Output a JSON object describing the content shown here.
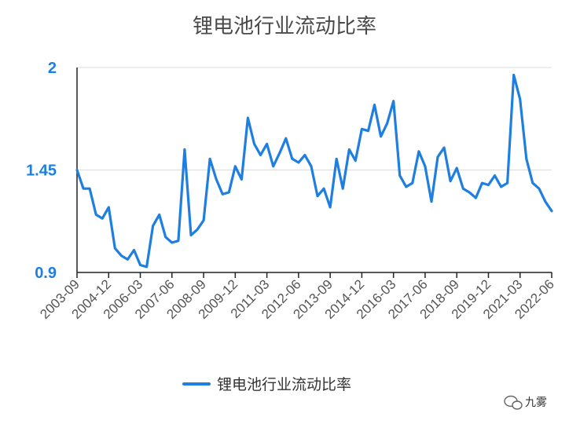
{
  "chart_data": {
    "type": "line",
    "title": "锂电池行业流动比率",
    "xlabel": "",
    "ylabel": "",
    "ylim": [
      0.9,
      2
    ],
    "yticks": [
      "0.9",
      "1.45",
      "2"
    ],
    "xticks": [
      "2003-09",
      "2004-12",
      "2006-03",
      "2007-06",
      "2008-09",
      "2009-12",
      "2011-03",
      "2012-06",
      "2013-09",
      "2014-12",
      "2016-03",
      "2017-06",
      "2018-09",
      "2019-12",
      "2021-03",
      "2022-06"
    ],
    "grid": true,
    "legend": "bottom",
    "series": [
      {
        "name": "锂电池行业流动比率",
        "color": "#1f7fe0",
        "values": [
          1.45,
          1.35,
          1.35,
          1.21,
          1.19,
          1.25,
          1.03,
          0.99,
          0.97,
          1.02,
          0.94,
          0.93,
          1.15,
          1.21,
          1.09,
          1.06,
          1.07,
          1.56,
          1.1,
          1.13,
          1.18,
          1.51,
          1.4,
          1.32,
          1.33,
          1.47,
          1.4,
          1.73,
          1.59,
          1.53,
          1.59,
          1.47,
          1.54,
          1.62,
          1.51,
          1.49,
          1.53,
          1.47,
          1.31,
          1.35,
          1.25,
          1.51,
          1.35,
          1.56,
          1.5,
          1.67,
          1.66,
          1.8,
          1.63,
          1.7,
          1.82,
          1.42,
          1.36,
          1.38,
          1.55,
          1.47,
          1.28,
          1.52,
          1.57,
          1.39,
          1.46,
          1.35,
          1.33,
          1.3,
          1.38,
          1.37,
          1.42,
          1.36,
          1.38,
          1.96,
          1.83,
          1.51,
          1.38,
          1.35,
          1.28,
          1.23
        ]
      }
    ]
  },
  "watermark": {
    "text": "九雾",
    "icon": "wechat-icon"
  }
}
